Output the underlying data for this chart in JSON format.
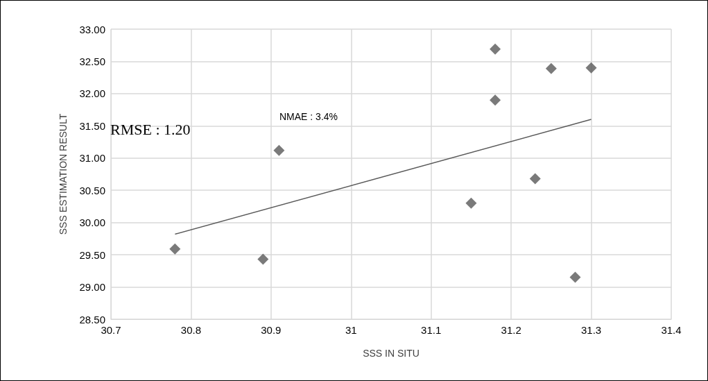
{
  "chart_data": {
    "type": "scatter",
    "xlabel": "SSS IN SITU",
    "ylabel": "SSS ESTIMATION RESULT",
    "annotations": [
      "NMAE : 3.4%",
      "RMSE : 1.20"
    ],
    "series": [
      {
        "color": "#595959",
        "marker": "diamond",
        "x": [
          30.78,
          30.89,
          30.91,
          31.15,
          31.18,
          31.18,
          31.23,
          31.25,
          31.28,
          31.3
        ],
        "values": [
          29.59,
          29.43,
          31.12,
          30.3,
          32.69,
          31.9,
          30.68,
          32.39,
          29.15,
          32.4
        ]
      },
      {
        "type": "line",
        "color": "#595959",
        "marker": "none",
        "x": [
          30.78,
          31.3
        ],
        "values": [
          29.82,
          31.6
        ]
      }
    ],
    "xlim": [
      30.7,
      31.4
    ],
    "xticks": [
      30.7,
      30.8,
      30.9,
      31,
      31.1,
      31.2,
      31.3,
      31.4
    ],
    "ylim": [
      28.5,
      33
    ],
    "yticks": [
      {
        "value": 28.5,
        "label": "28.50"
      },
      {
        "value": 29,
        "label": "29.00"
      },
      {
        "value": 29.5,
        "label": "29.50"
      },
      {
        "value": 30,
        "label": "30.00"
      },
      {
        "value": 30.5,
        "label": "30.50"
      },
      {
        "value": 31,
        "label": "31.00"
      },
      {
        "value": 31.5,
        "label": "31.50"
      },
      {
        "value": 32,
        "label": "32.00"
      },
      {
        "value": 32.5,
        "label": "32.50"
      },
      {
        "value": 33,
        "label": "33.00"
      }
    ],
    "grid": true
  }
}
